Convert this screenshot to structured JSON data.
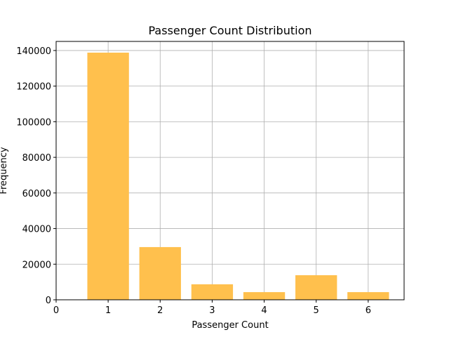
{
  "chart_data": {
    "type": "bar",
    "title": "Passenger Count Distribution",
    "x_label": "Passenger Count",
    "y_label": "Frequency",
    "x": [
      1,
      2,
      3,
      4,
      5,
      6
    ],
    "values": [
      138800,
      29600,
      8700,
      4300,
      13800,
      4300
    ],
    "color": "#ffc04d",
    "xlim": [
      0,
      6.69
    ],
    "xticks": [
      0,
      1,
      2,
      3,
      4,
      5,
      6
    ],
    "ylim": [
      0,
      145100
    ],
    "yticks": [
      0,
      20000,
      40000,
      60000,
      80000,
      100000,
      120000,
      140000
    ],
    "grid": true
  }
}
